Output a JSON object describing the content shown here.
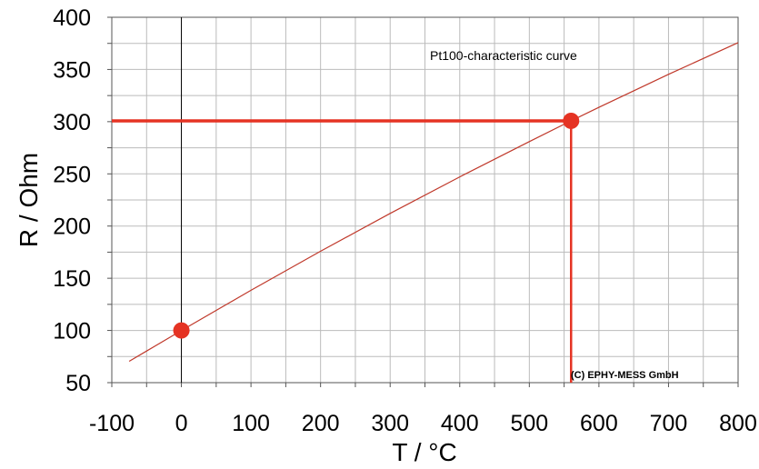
{
  "chart_data": {
    "type": "line",
    "title": "",
    "annotation": "Pt100-characteristic curve",
    "copyright": "(C) EPHY-MESS GmbH",
    "xlabel": "T / °C",
    "ylabel": "R / Ohm",
    "xlim": [
      -100,
      800
    ],
    "ylim": [
      50,
      400
    ],
    "x_ticks": [
      -100,
      0,
      100,
      200,
      300,
      400,
      500,
      600,
      700,
      800
    ],
    "y_ticks": [
      50,
      100,
      150,
      200,
      250,
      300,
      350,
      400
    ],
    "x_tick_labels": [
      "-100",
      "0",
      "100",
      "200",
      "300",
      "400",
      "500",
      "600",
      "700",
      "800"
    ],
    "y_tick_labels": [
      "50",
      "100",
      "150",
      "200",
      "250",
      "300",
      "350",
      "400"
    ],
    "grid": true,
    "x_minor_step": 50,
    "y_minor_step": 25,
    "series": [
      {
        "x": [
          -75,
          -50,
          0,
          100,
          200,
          300,
          400,
          500,
          560,
          600,
          700,
          800
        ],
        "y": [
          70.5,
          80.3,
          100,
          138.5,
          175.9,
          212.1,
          247.1,
          280.9,
          300.8,
          313.7,
          345.3,
          375.7
        ]
      }
    ],
    "highlight_points": [
      {
        "x": 0,
        "y": 100
      },
      {
        "x": 560,
        "y": 300.8
      }
    ],
    "reference_lines": [
      {
        "axis": "y",
        "value": 300.8,
        "x_from": -100,
        "x_to": 560
      },
      {
        "axis": "x",
        "value": 560,
        "y_from": 50,
        "y_to": 300.8
      }
    ],
    "colors": {
      "curve": "#c0392b",
      "highlight": "#e53323",
      "grid": "#bbbbbb",
      "zero_line": "#000000",
      "frame": "#555555"
    }
  }
}
